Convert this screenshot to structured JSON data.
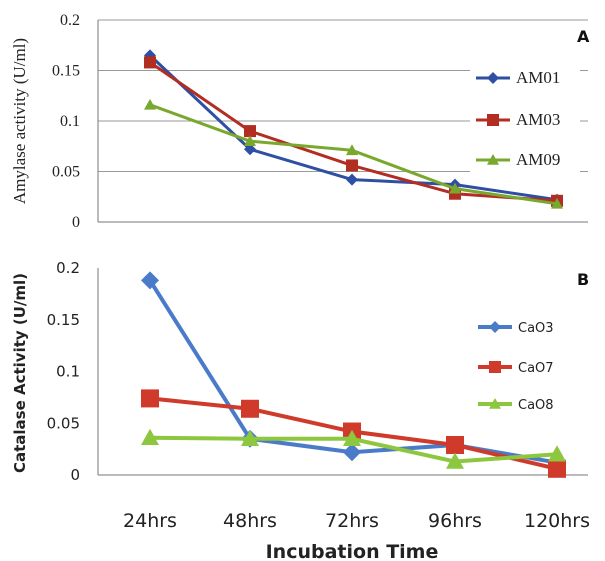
{
  "chart_data": [
    {
      "type": "line",
      "panel_label": "A",
      "ylabel": "Amylase activity (U/ml)",
      "xlabel": "",
      "categories": [
        "24hrs",
        "48hrs",
        "72hrs",
        "96hrs",
        "120hrs"
      ],
      "ylim": [
        0,
        0.2
      ],
      "yticks": [
        "0",
        "0.05",
        "0.1",
        "0.15",
        "0.2"
      ],
      "grid": true,
      "legend": "right",
      "series": [
        {
          "name": "AM01",
          "values": [
            0.165,
            0.072,
            0.042,
            0.037,
            0.022
          ],
          "color": "#2e4fa3",
          "marker": "diamond"
        },
        {
          "name": "AM03",
          "values": [
            0.158,
            0.09,
            0.056,
            0.028,
            0.021
          ],
          "color": "#b22d22",
          "marker": "square"
        },
        {
          "name": "AM09",
          "values": [
            0.116,
            0.08,
            0.071,
            0.033,
            0.018
          ],
          "color": "#79a82e",
          "marker": "triangle"
        }
      ]
    },
    {
      "type": "line",
      "panel_label": "B",
      "ylabel": "Catalase Activity (U/ml)",
      "xlabel": "Incubation Time",
      "categories": [
        "24hrs",
        "48hrs",
        "72hrs",
        "96hrs",
        "120hrs"
      ],
      "ylim": [
        0,
        0.2
      ],
      "yticks": [
        "0",
        "0.05",
        "0.1",
        "0.15",
        "0.2"
      ],
      "grid": false,
      "legend": "right",
      "series": [
        {
          "name": "CaO3",
          "values": [
            0.188,
            0.035,
            0.022,
            0.029,
            0.012
          ],
          "color": "#4a7bc9",
          "marker": "diamond"
        },
        {
          "name": "CaO7",
          "values": [
            0.074,
            0.064,
            0.042,
            0.029,
            0.006
          ],
          "color": "#cf3a2a",
          "marker": "square"
        },
        {
          "name": "CaO8",
          "values": [
            0.036,
            0.035,
            0.035,
            0.013,
            0.02
          ],
          "color": "#8dc63f",
          "marker": "triangle"
        }
      ]
    }
  ]
}
